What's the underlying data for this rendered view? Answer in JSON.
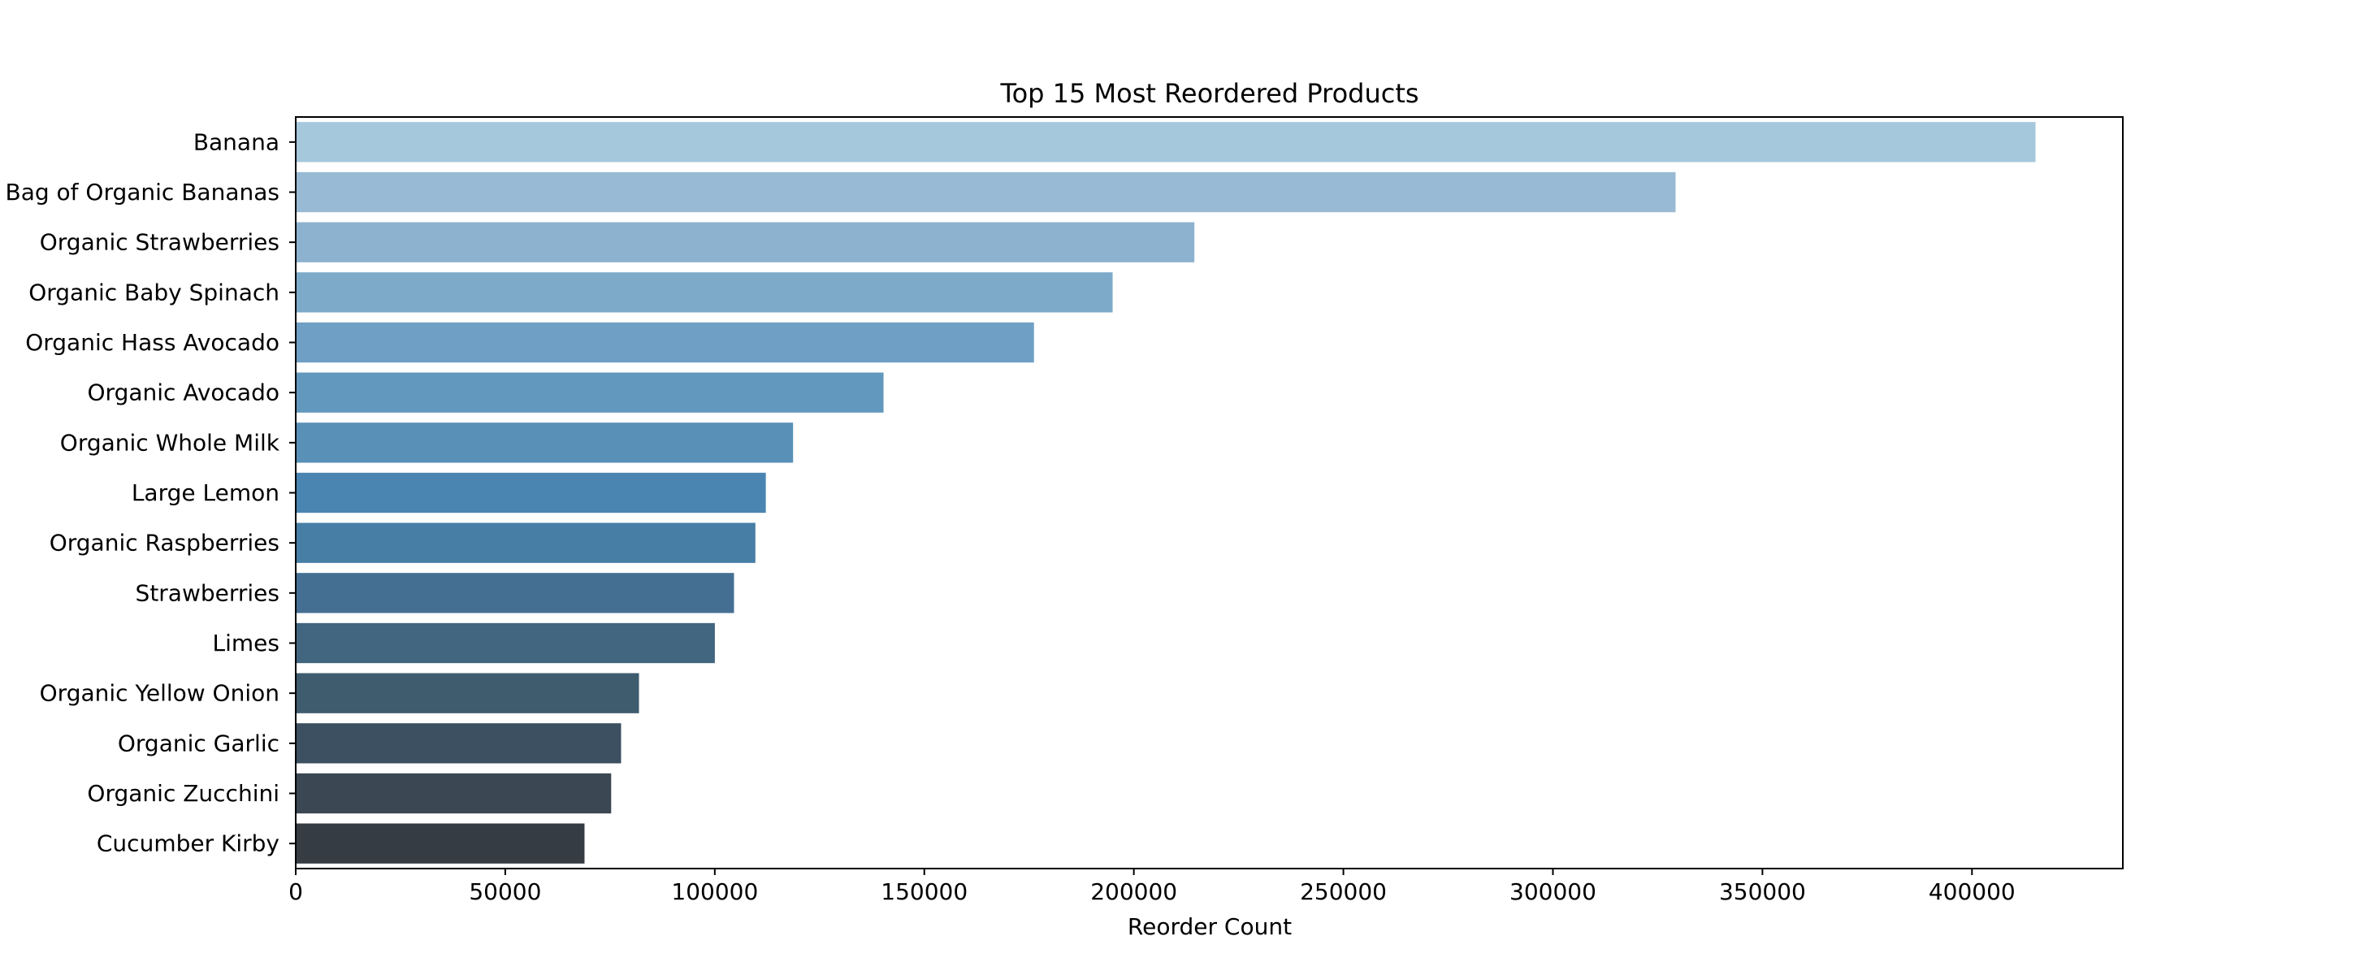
{
  "chart_data": {
    "type": "bar",
    "orientation": "horizontal",
    "title": "Top 15 Most Reordered Products",
    "xlabel": "Reorder Count",
    "ylabel": "",
    "xlim": [
      0,
      436000
    ],
    "xticks": [
      0,
      50000,
      100000,
      150000,
      200000,
      250000,
      300000,
      350000,
      400000
    ],
    "grid": false,
    "legend": "none",
    "categories": [
      "Banana",
      "Bag of Organic Bananas",
      "Organic Strawberries",
      "Organic Baby Spinach",
      "Organic Hass Avocado",
      "Organic Avocado",
      "Organic Whole Milk",
      "Large Lemon",
      "Organic Raspberries",
      "Strawberries",
      "Limes",
      "Organic Yellow Onion",
      "Organic Garlic",
      "Organic Zucchini",
      "Cucumber Kirby"
    ],
    "values": [
      415166,
      329275,
      214448,
      194939,
      176173,
      140270,
      118684,
      112178,
      109688,
      104588,
      100018,
      81912,
      77641,
      75275,
      68916
    ],
    "colors": [
      "#a5c8dd",
      "#98bad4",
      "#8cb2cf",
      "#7eaaca",
      "#6f9fc4",
      "#6398be",
      "#5890b8",
      "#4a85b2",
      "#477ea6",
      "#446f93",
      "#426680",
      "#3f5b6e",
      "#3c5062",
      "#3b4753",
      "#363c44"
    ]
  }
}
